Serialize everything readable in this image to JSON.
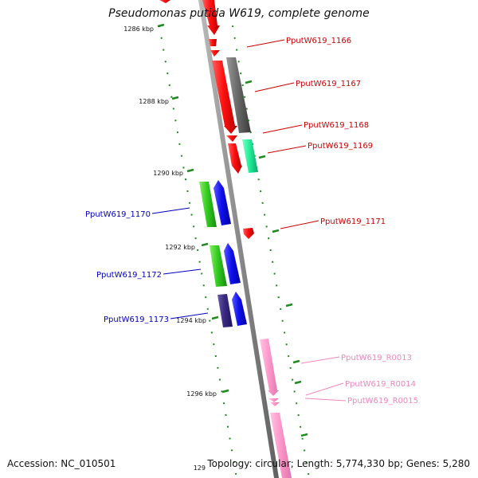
{
  "title": "Pseudomonas putida W619, complete genome",
  "accession": "Accession: NC_010501",
  "summary": "Topology: circular; Length: 5,774,330 bp; Genes: 5,280",
  "colors": {
    "backbone": "#8c8c8c",
    "tick": "#1f8a1f",
    "label_red": "#cc0000",
    "label_blue": "#0000bb",
    "label_pink": "#ee88bb"
  },
  "ticks": [
    "1286 kbp",
    "1288 kbp",
    "1290 kbp",
    "1292 kbp",
    "1294 kbp",
    "1296 kbp",
    "129"
  ],
  "genes": [
    {
      "name": "PputW619_1166",
      "color_key": "label_red"
    },
    {
      "name": "PputW619_1167",
      "color_key": "label_red"
    },
    {
      "name": "PputW619_1168",
      "color_key": "label_red"
    },
    {
      "name": "PputW619_1169",
      "color_key": "label_red"
    },
    {
      "name": "PputW619_1170",
      "color_key": "label_blue"
    },
    {
      "name": "PputW619_1171",
      "color_key": "label_red"
    },
    {
      "name": "PputW619_1172",
      "color_key": "label_blue"
    },
    {
      "name": "PputW619_1173",
      "color_key": "label_blue"
    },
    {
      "name": "PputW619_R0013",
      "color_key": "label_pink"
    },
    {
      "name": "PputW619_R0014",
      "color_key": "label_pink"
    },
    {
      "name": "PputW619_R0015",
      "color_key": "label_pink"
    }
  ]
}
